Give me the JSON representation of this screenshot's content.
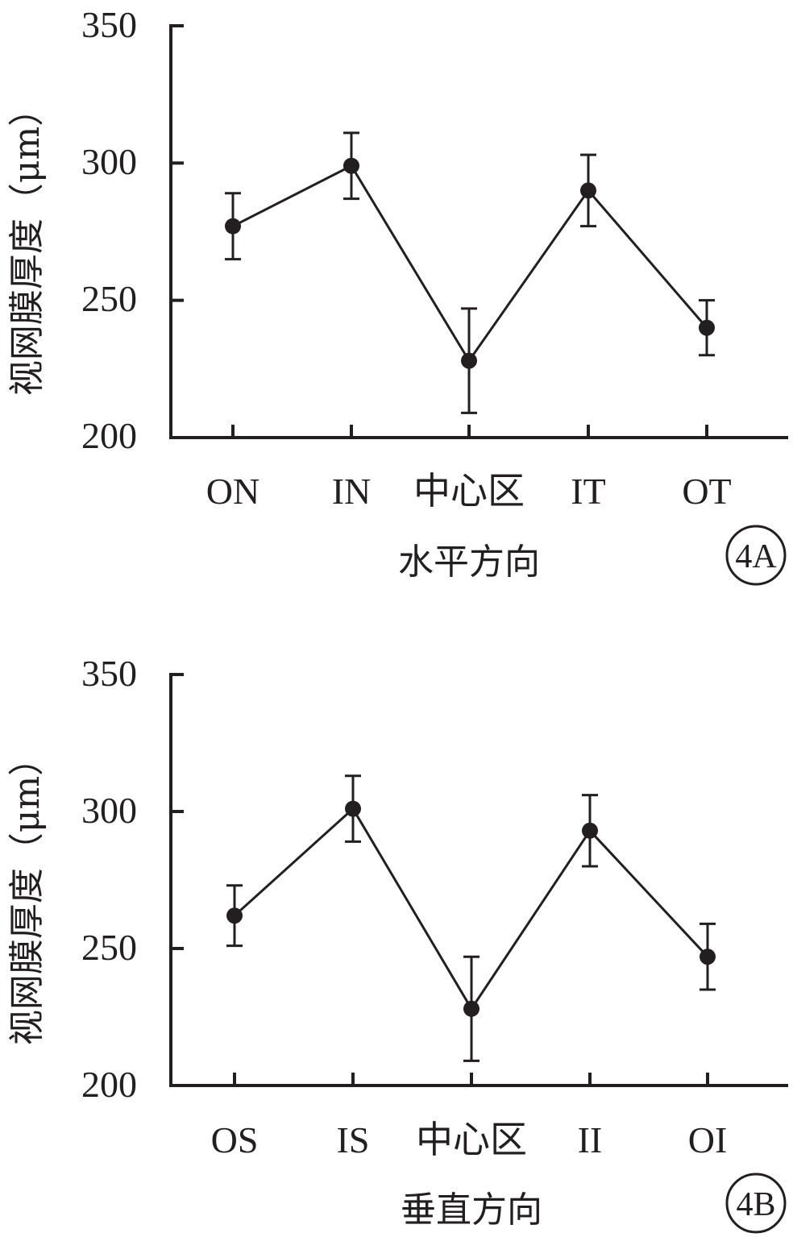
{
  "chart_data": [
    {
      "type": "line",
      "panel_label": "4A",
      "xlabel": "水平方向",
      "ylabel": "视网膜厚度（μm）",
      "categories": [
        "ON",
        "IN",
        "中心区",
        "IT",
        "OT"
      ],
      "values": [
        277,
        299,
        228,
        290,
        240
      ],
      "error": [
        12,
        12,
        19,
        13,
        10
      ],
      "ylim": [
        200,
        350
      ],
      "yticks": [
        "200",
        "250",
        "300",
        "350"
      ],
      "colors": {
        "line": "#231f20",
        "marker": "#231f20"
      }
    },
    {
      "type": "line",
      "panel_label": "4B",
      "xlabel": "垂直方向",
      "ylabel": "视网膜厚度（μm）",
      "categories": [
        "OS",
        "IS",
        "中心区",
        "II",
        "OI"
      ],
      "values": [
        262,
        301,
        228,
        293,
        247
      ],
      "error": [
        11,
        12,
        19,
        13,
        12
      ],
      "ylim": [
        200,
        350
      ],
      "yticks": [
        "200",
        "250",
        "300",
        "350"
      ],
      "colors": {
        "line": "#231f20",
        "marker": "#231f20"
      }
    }
  ]
}
